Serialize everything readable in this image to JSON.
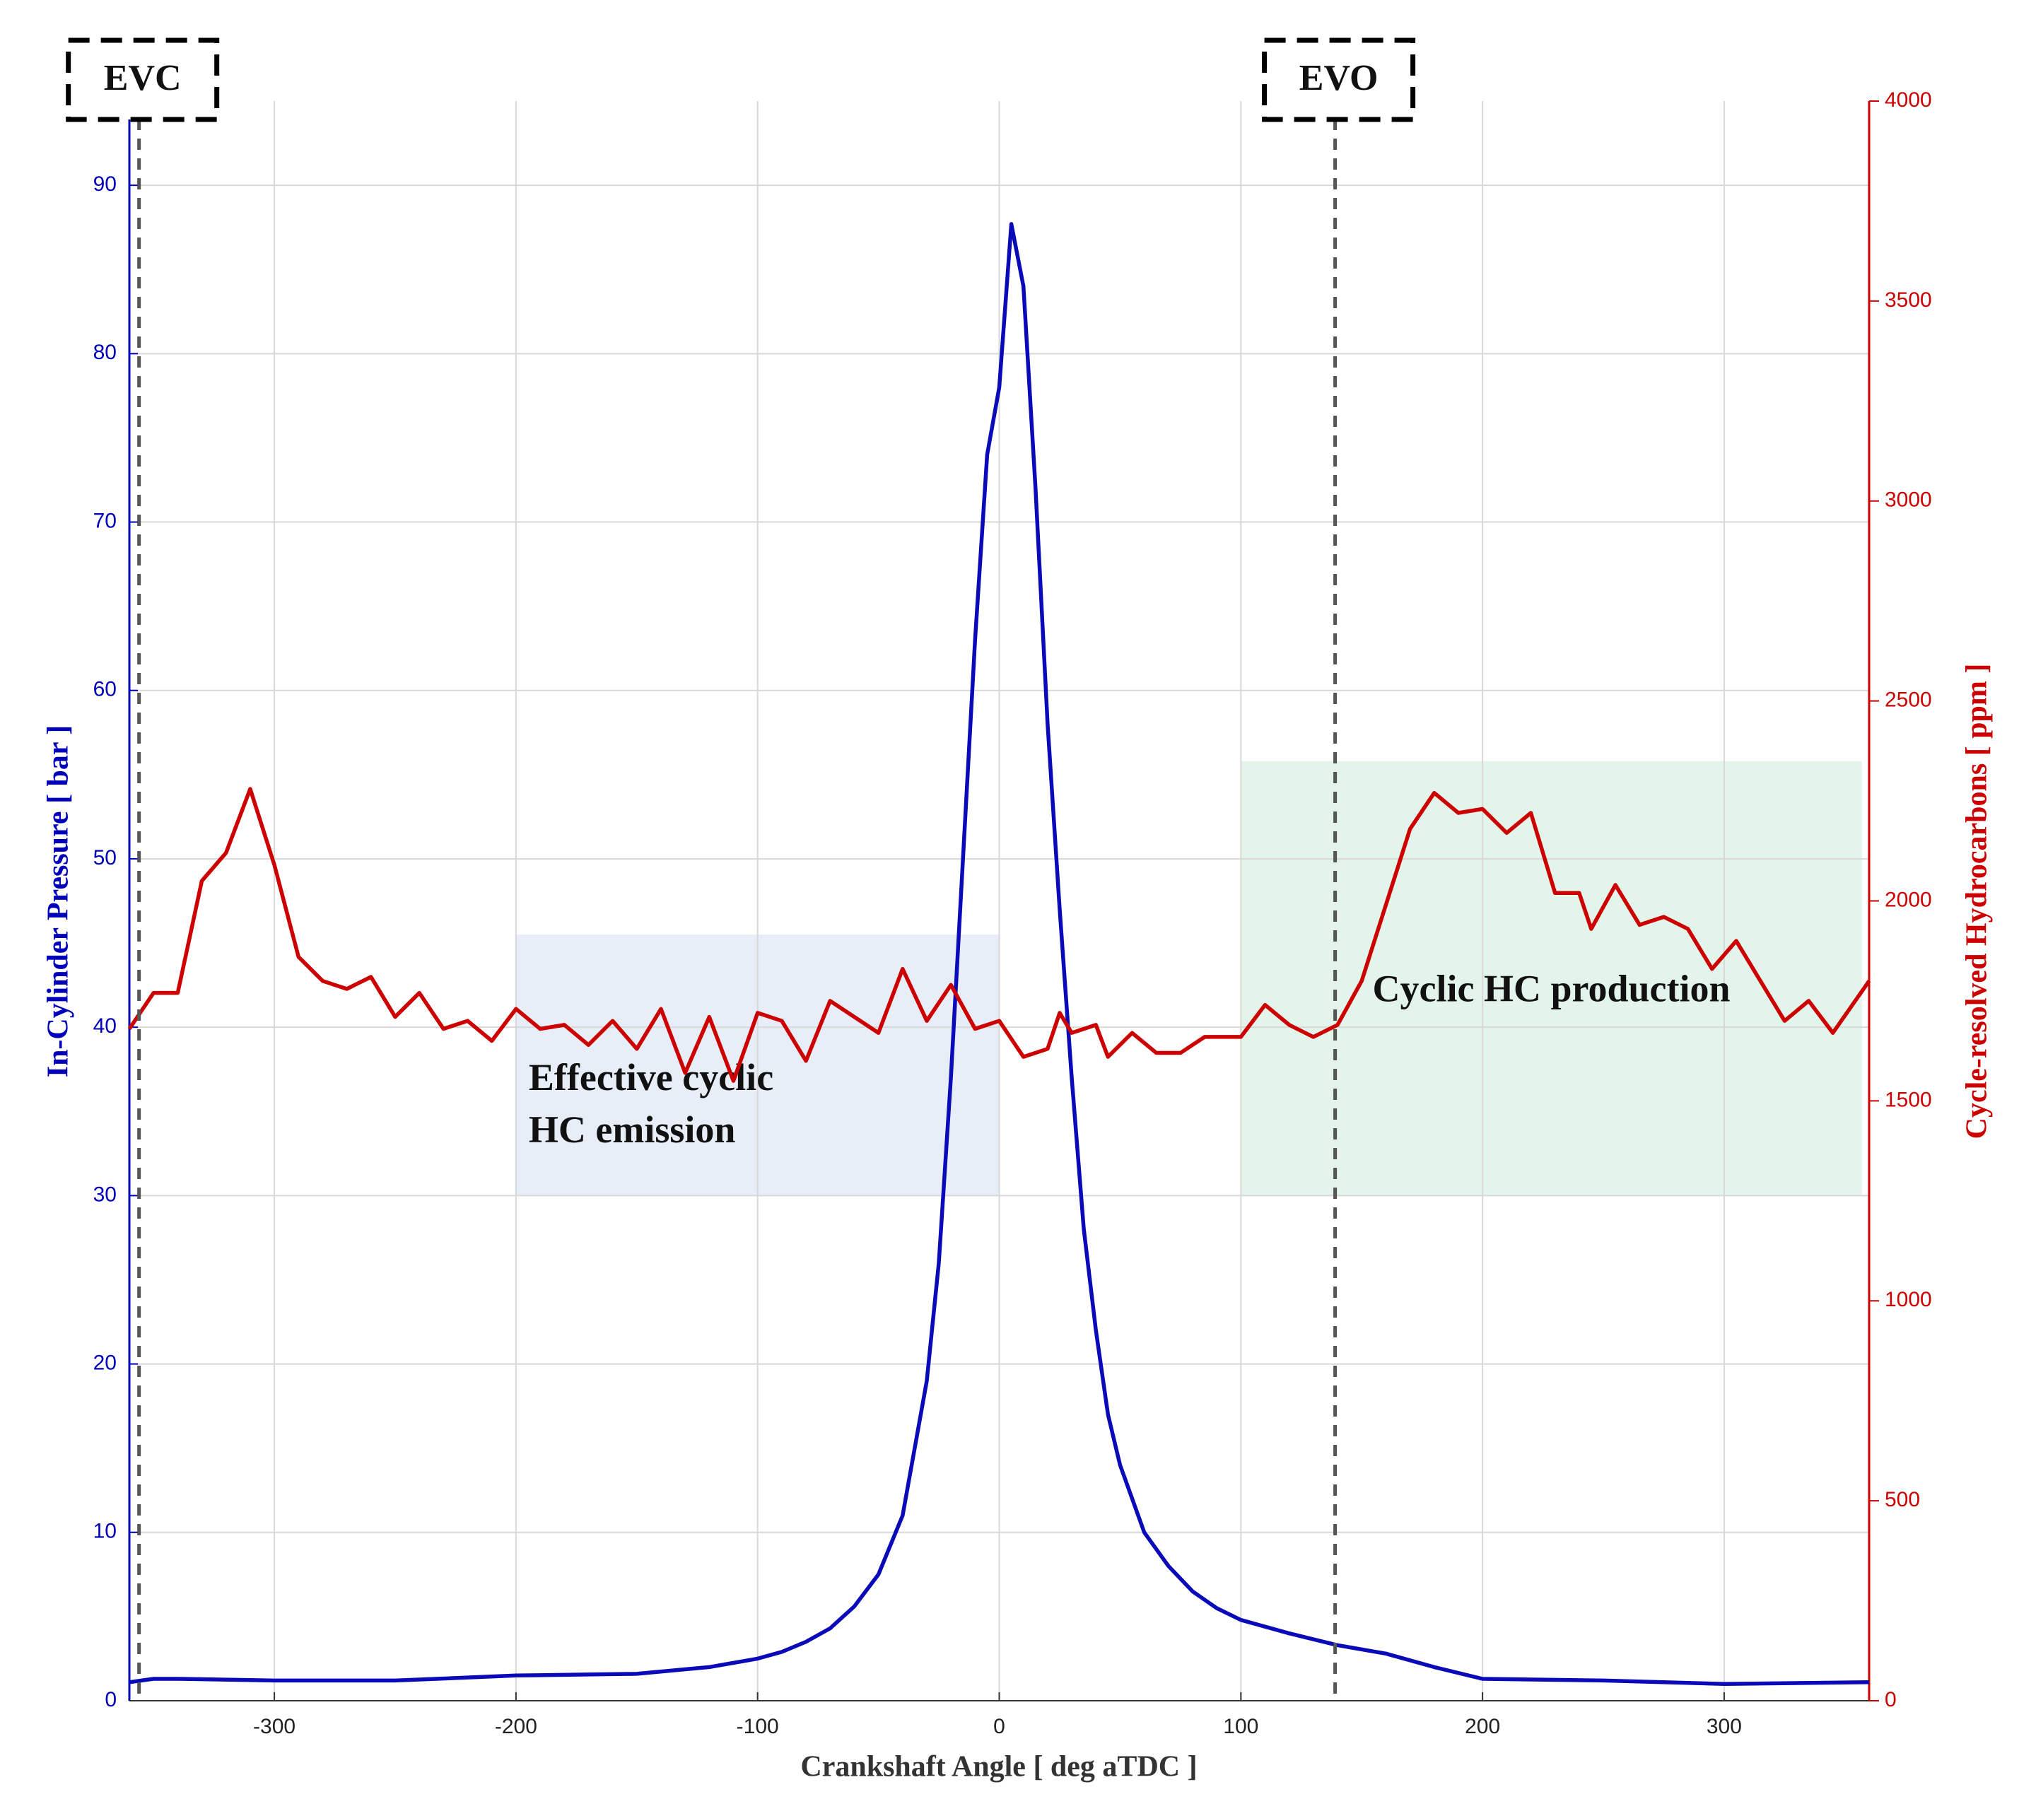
{
  "chart_data": {
    "type": "line",
    "xlabel": "Crankshaft Angle [ deg aTDC ]",
    "ylabel": "In-Cylinder Pressure [ bar ]",
    "y2label": "Cycle-resolved Hydrocarbons [ ppm ]",
    "xlim": [
      -360,
      360
    ],
    "ylim": [
      0,
      95
    ],
    "y2lim": [
      0,
      4000
    ],
    "xticks": [
      -300,
      -200,
      -100,
      0,
      100,
      200,
      300
    ],
    "yticks": [
      0,
      10,
      20,
      30,
      40,
      50,
      60,
      70,
      80,
      90
    ],
    "y2ticks": [
      0,
      500,
      1000,
      1500,
      2000,
      2500,
      3000,
      3500,
      4000
    ],
    "grid": true,
    "ycolor": "#0000b8",
    "y2color": "#cc0000",
    "series": [
      {
        "color": "#0a0ab8",
        "x": [
          -360,
          -355,
          -350,
          -340,
          -300,
          -250,
          -200,
          -150,
          -120,
          -100,
          -90,
          -80,
          -70,
          -60,
          -50,
          -40,
          -30,
          -25,
          -20,
          -15,
          -10,
          -5,
          0,
          5,
          10,
          15,
          20,
          25,
          30,
          35,
          40,
          45,
          50,
          55,
          60,
          70,
          80,
          90,
          100,
          120,
          140,
          160,
          180,
          200,
          250,
          300,
          360
        ],
        "values": [
          1.1,
          1.2,
          1.3,
          1.3,
          1.2,
          1.2,
          1.5,
          1.6,
          2.0,
          2.5,
          2.9,
          3.5,
          4.3,
          5.6,
          7.5,
          11,
          19,
          26,
          37,
          50,
          63,
          74,
          78,
          87.7,
          84,
          72,
          58,
          47,
          37,
          28,
          22,
          17,
          14,
          12,
          10,
          8,
          6.5,
          5.5,
          4.8,
          4,
          3.3,
          2.8,
          2,
          1.3,
          1.2,
          1,
          1.1
        ]
      },
      {
        "color": "#cc0000",
        "axis": "y2",
        "x": [
          -360,
          -350,
          -340,
          -330,
          -320,
          -310,
          -300,
          -290,
          -280,
          -270,
          -260,
          -250,
          -240,
          -230,
          -220,
          -210,
          -200,
          -190,
          -180,
          -170,
          -160,
          -150,
          -140,
          -130,
          -120,
          -110,
          -100,
          -90,
          -80,
          -70,
          -60,
          -50,
          -40,
          -30,
          -20,
          -10,
          0,
          10,
          20,
          25,
          30,
          40,
          45,
          55,
          65,
          75,
          85,
          100,
          110,
          120,
          130,
          140,
          150,
          160,
          170,
          180,
          190,
          200,
          210,
          220,
          230,
          240,
          245,
          255,
          265,
          275,
          285,
          295,
          305,
          315,
          325,
          335,
          345,
          360
        ],
        "values": [
          1680,
          1770,
          1770,
          2050,
          2120,
          2280,
          2090,
          1860,
          1800,
          1780,
          1810,
          1710,
          1770,
          1680,
          1700,
          1650,
          1730,
          1680,
          1690,
          1640,
          1700,
          1630,
          1730,
          1570,
          1710,
          1550,
          1720,
          1700,
          1600,
          1750,
          1710,
          1670,
          1830,
          1700,
          1790,
          1680,
          1700,
          1610,
          1630,
          1720,
          1670,
          1690,
          1610,
          1670,
          1620,
          1620,
          1660,
          1660,
          1740,
          1690,
          1660,
          1690,
          1800,
          1990,
          2180,
          2270,
          2220,
          2230,
          2170,
          2220,
          2020,
          2020,
          1930,
          2040,
          1940,
          1960,
          1930,
          1830,
          1900,
          1800,
          1700,
          1750,
          1670,
          1800
        ]
      }
    ],
    "regions": [
      {
        "xlim": [
          -200,
          0
        ],
        "ylim": [
          30,
          45.5
        ],
        "color": "#e8eef8",
        "label_lines": [
          "Effective cyclic",
          "HC emission"
        ],
        "align": "left"
      },
      {
        "xlim": [
          100,
          357
        ],
        "ylim": [
          30,
          55.8
        ],
        "color": "#e3f5ea",
        "label_lines": [
          "Cyclic HC production"
        ],
        "align": "center"
      }
    ],
    "vlines": [
      {
        "x": -356,
        "label": "EVC"
      },
      {
        "x": 139,
        "label": "EVO"
      }
    ]
  }
}
